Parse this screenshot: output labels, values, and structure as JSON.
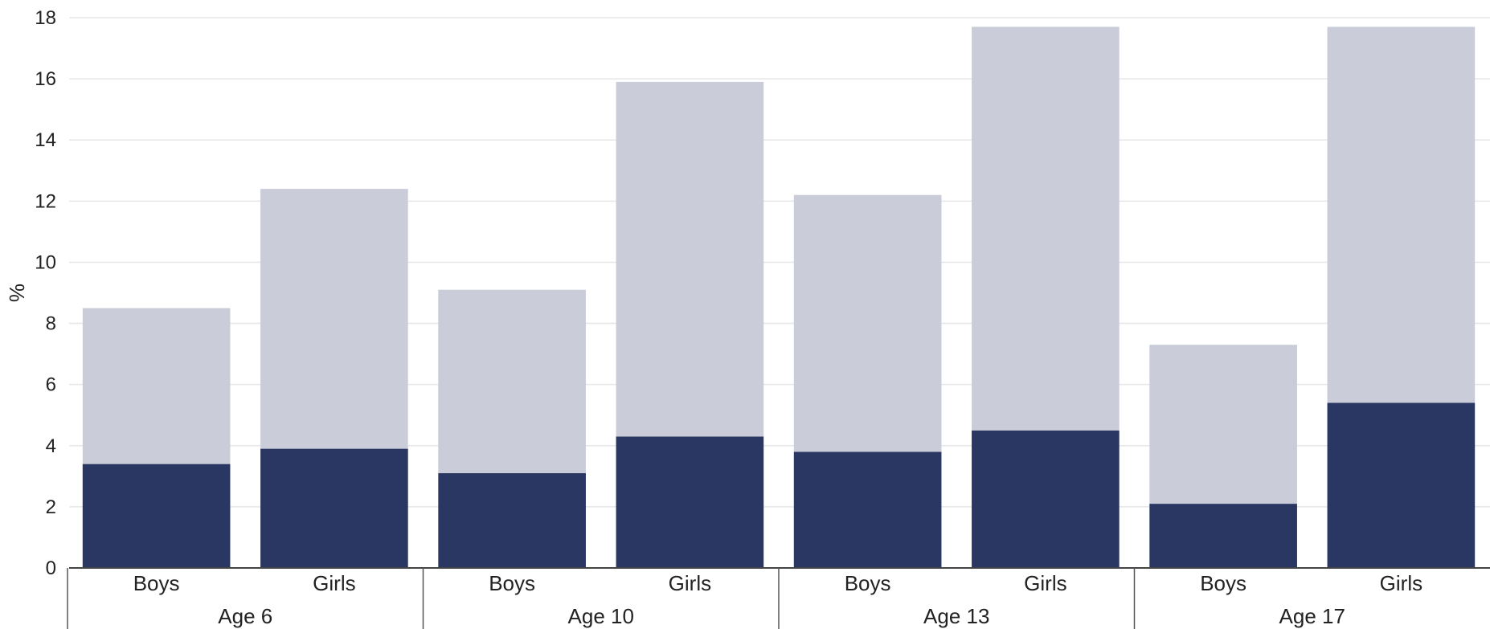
{
  "chart_data": {
    "type": "bar",
    "stacked": true,
    "ylabel": "%",
    "ylim": [
      0,
      18
    ],
    "yticks": [
      0,
      2,
      4,
      6,
      8,
      10,
      12,
      14,
      16,
      18
    ],
    "grid": true,
    "groups": [
      {
        "label": "Age 6",
        "categories": [
          "Boys",
          "Girls"
        ]
      },
      {
        "label": "Age 10",
        "categories": [
          "Boys",
          "Girls"
        ]
      },
      {
        "label": "Age 13",
        "categories": [
          "Boys",
          "Girls"
        ]
      },
      {
        "label": "Age 17",
        "categories": [
          "Boys",
          "Girls"
        ]
      }
    ],
    "series": [
      {
        "values": [
          3.4,
          3.9,
          3.1,
          4.3,
          3.8,
          4.5,
          2.1,
          5.4
        ],
        "color": "#2b3763"
      },
      {
        "values": [
          5.1,
          8.5,
          6.0,
          11.6,
          8.4,
          13.2,
          5.2,
          12.3
        ],
        "color": "#cacdd9"
      }
    ]
  }
}
